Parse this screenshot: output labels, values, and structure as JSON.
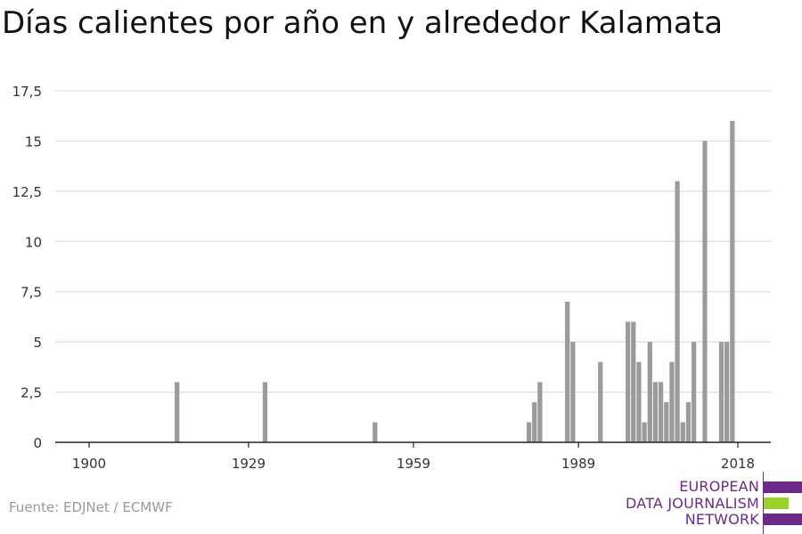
{
  "chart_data": {
    "type": "bar",
    "title": "Días calientes por año en y alrededor Kalamata",
    "xlabel": "",
    "ylabel": "",
    "xlim": [
      1900,
      2018
    ],
    "ylim": [
      0,
      17.5
    ],
    "x_ticks": [
      1900,
      1929,
      1959,
      1989,
      2018
    ],
    "y_ticks": [
      0,
      2.5,
      5,
      7.5,
      10,
      12.5,
      15,
      17.5
    ],
    "y_tick_labels": [
      "0",
      "2,5",
      "5",
      "7,5",
      "10",
      "12,5",
      "15",
      "17,5"
    ],
    "grid": true,
    "bar_color": "#9b9b9b",
    "years": [
      1916,
      1932,
      1952,
      1980,
      1981,
      1982,
      1987,
      1988,
      1993,
      1998,
      1999,
      2000,
      2001,
      2002,
      2003,
      2004,
      2005,
      2006,
      2007,
      2008,
      2009,
      2010,
      2012,
      2015,
      2016,
      2017
    ],
    "values": [
      3,
      3,
      1,
      1,
      2,
      3,
      7,
      5,
      4,
      6,
      6,
      4,
      1,
      5,
      3,
      3,
      2,
      4,
      13,
      1,
      2,
      5,
      15,
      5,
      5,
      16
    ]
  },
  "source": "Fuente: EDJNet / ECMWF",
  "logo": {
    "lines": [
      "EUROPEAN",
      "DATA JOURNALISM",
      "NETWORK"
    ],
    "colors": [
      "#6b2a8a",
      "#9ad12b",
      "#6b2a8a"
    ]
  }
}
